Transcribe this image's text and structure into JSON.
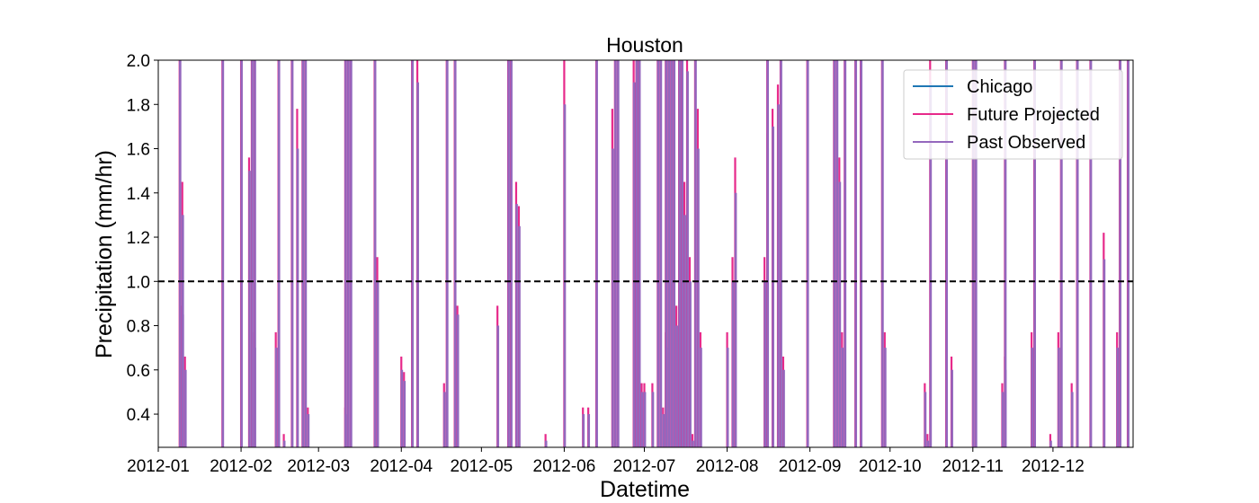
{
  "chart_data": {
    "type": "line",
    "title": "Houston",
    "xlabel": "Datetime",
    "ylabel": "Precipitation (mm/hr)",
    "xlim": [
      "2012-01-01",
      "2012-12-31"
    ],
    "ylim": [
      0.25,
      2.0
    ],
    "x_ticks": [
      "2012-01",
      "2012-02",
      "2012-03",
      "2012-04",
      "2012-05",
      "2012-06",
      "2012-07",
      "2012-08",
      "2012-09",
      "2012-10",
      "2012-11",
      "2012-12"
    ],
    "y_ticks": [
      "0.4",
      "0.6",
      "0.8",
      "1.0",
      "1.2",
      "1.4",
      "1.6",
      "1.8",
      "2.0"
    ],
    "reference_line": {
      "y": 1.0,
      "style": "dashed",
      "color": "#000000"
    },
    "legend_position": "top-right",
    "grid": false,
    "series": [
      {
        "name": "Chicago",
        "color": "#1f77b4",
        "events": []
      },
      {
        "name": "Future Projected",
        "color": "#e7298a",
        "events": [
          [
            "2012-01-09",
            2.0
          ],
          [
            "2012-01-10",
            1.45
          ],
          [
            "2012-01-10",
            0.89
          ],
          [
            "2012-01-11",
            0.66
          ],
          [
            "2012-01-25",
            2.0
          ],
          [
            "2012-02-01",
            2.0
          ],
          [
            "2012-02-04",
            1.56
          ],
          [
            "2012-02-05",
            2.0
          ],
          [
            "2012-02-06",
            2.0
          ],
          [
            "2012-02-06",
            0.77
          ],
          [
            "2012-02-14",
            0.77
          ],
          [
            "2012-02-15",
            2.0
          ],
          [
            "2012-02-17",
            0.31
          ],
          [
            "2012-02-20",
            2.0
          ],
          [
            "2012-02-22",
            1.78
          ],
          [
            "2012-02-24",
            2.0
          ],
          [
            "2012-02-25",
            2.0
          ],
          [
            "2012-02-26",
            0.43
          ],
          [
            "2012-03-11",
            0.43
          ],
          [
            "2012-03-11",
            2.0
          ],
          [
            "2012-03-12",
            2.0
          ],
          [
            "2012-03-13",
            2.0
          ],
          [
            "2012-03-22",
            2.0
          ],
          [
            "2012-03-23",
            1.11
          ],
          [
            "2012-04-01",
            0.66
          ],
          [
            "2012-04-02",
            0.59
          ],
          [
            "2012-04-05",
            2.0
          ],
          [
            "2012-04-07",
            2.0
          ],
          [
            "2012-04-17",
            0.54
          ],
          [
            "2012-04-18",
            2.0
          ],
          [
            "2012-04-21",
            2.0
          ],
          [
            "2012-04-22",
            0.89
          ],
          [
            "2012-05-07",
            0.89
          ],
          [
            "2012-05-11",
            2.0
          ],
          [
            "2012-05-12",
            2.0
          ],
          [
            "2012-05-14",
            1.45
          ],
          [
            "2012-05-15",
            1.34
          ],
          [
            "2012-05-25",
            0.31
          ],
          [
            "2012-06-01",
            2.0
          ],
          [
            "2012-06-08",
            0.43
          ],
          [
            "2012-06-10",
            0.43
          ],
          [
            "2012-06-13",
            2.0
          ],
          [
            "2012-06-19",
            1.78
          ],
          [
            "2012-06-20",
            2.0
          ],
          [
            "2012-06-21",
            2.0
          ],
          [
            "2012-06-27",
            2.0
          ],
          [
            "2012-06-28",
            2.0
          ],
          [
            "2012-06-29",
            2.0
          ],
          [
            "2012-06-30",
            0.54
          ],
          [
            "2012-07-01",
            0.54
          ],
          [
            "2012-07-04",
            0.54
          ],
          [
            "2012-07-06",
            2.0
          ],
          [
            "2012-07-07",
            2.0
          ],
          [
            "2012-07-08",
            0.43
          ],
          [
            "2012-07-09",
            2.0
          ],
          [
            "2012-07-09",
            0.77
          ],
          [
            "2012-07-10",
            2.0
          ],
          [
            "2012-07-11",
            2.0
          ],
          [
            "2012-07-12",
            2.0
          ],
          [
            "2012-07-13",
            0.89
          ],
          [
            "2012-07-14",
            2.0
          ],
          [
            "2012-07-15",
            2.0
          ],
          [
            "2012-07-16",
            1.45
          ],
          [
            "2012-07-17",
            2.0
          ],
          [
            "2012-07-18",
            1.11
          ],
          [
            "2012-07-19",
            0.31
          ],
          [
            "2012-07-20",
            2.0
          ],
          [
            "2012-07-21",
            1.78
          ],
          [
            "2012-07-22",
            0.77
          ],
          [
            "2012-08-01",
            0.77
          ],
          [
            "2012-08-03",
            1.11
          ],
          [
            "2012-08-04",
            1.56
          ],
          [
            "2012-08-15",
            1.11
          ],
          [
            "2012-08-16",
            2.0
          ],
          [
            "2012-08-16",
            1.67
          ],
          [
            "2012-08-18",
            1.78
          ],
          [
            "2012-08-20",
            1.89
          ],
          [
            "2012-08-21",
            2.0
          ],
          [
            "2012-08-22",
            0.66
          ],
          [
            "2012-08-31",
            2.0
          ],
          [
            "2012-09-10",
            2.0
          ],
          [
            "2012-09-11",
            2.0
          ],
          [
            "2012-09-12",
            1.56
          ],
          [
            "2012-09-13",
            0.77
          ],
          [
            "2012-09-14",
            2.0
          ],
          [
            "2012-09-18",
            2.0
          ],
          [
            "2012-09-20",
            2.0
          ],
          [
            "2012-09-28",
            2.0
          ],
          [
            "2012-09-29",
            0.77
          ],
          [
            "2012-10-14",
            0.54
          ],
          [
            "2012-10-15",
            0.31
          ],
          [
            "2012-10-16",
            2.0
          ],
          [
            "2012-10-22",
            2.0
          ],
          [
            "2012-10-24",
            0.66
          ],
          [
            "2012-11-01",
            2.0
          ],
          [
            "2012-11-02",
            2.0
          ],
          [
            "2012-11-12",
            0.54
          ],
          [
            "2012-11-13",
            0.66
          ],
          [
            "2012-11-13",
            2.0
          ],
          [
            "2012-11-23",
            0.77
          ],
          [
            "2012-11-24",
            2.0
          ],
          [
            "2012-11-30",
            0.31
          ],
          [
            "2012-12-03",
            0.77
          ],
          [
            "2012-12-04",
            2.0
          ],
          [
            "2012-12-08",
            0.54
          ],
          [
            "2012-12-10",
            2.0
          ],
          [
            "2012-12-15",
            2.0
          ],
          [
            "2012-12-20",
            1.22
          ],
          [
            "2012-12-25",
            0.77
          ],
          [
            "2012-12-26",
            2.0
          ],
          [
            "2012-12-29",
            2.0
          ]
        ]
      },
      {
        "name": "Past Observed",
        "color": "#9467bd",
        "events": [
          [
            "2012-01-09",
            2.0
          ],
          [
            "2012-01-10",
            1.3
          ],
          [
            "2012-01-10",
            0.85
          ],
          [
            "2012-01-11",
            0.6
          ],
          [
            "2012-01-25",
            2.0
          ],
          [
            "2012-02-01",
            2.0
          ],
          [
            "2012-02-04",
            1.5
          ],
          [
            "2012-02-05",
            2.0
          ],
          [
            "2012-02-06",
            2.0
          ],
          [
            "2012-02-06",
            0.7
          ],
          [
            "2012-02-14",
            0.7
          ],
          [
            "2012-02-15",
            2.0
          ],
          [
            "2012-02-17",
            0.28
          ],
          [
            "2012-02-20",
            2.0
          ],
          [
            "2012-02-22",
            1.6
          ],
          [
            "2012-02-24",
            2.0
          ],
          [
            "2012-02-25",
            2.0
          ],
          [
            "2012-02-26",
            0.4
          ],
          [
            "2012-03-11",
            0.4
          ],
          [
            "2012-03-11",
            2.0
          ],
          [
            "2012-03-12",
            2.0
          ],
          [
            "2012-03-13",
            2.0
          ],
          [
            "2012-03-22",
            2.0
          ],
          [
            "2012-03-23",
            1.0
          ],
          [
            "2012-04-01",
            0.6
          ],
          [
            "2012-04-02",
            0.55
          ],
          [
            "2012-04-05",
            2.0
          ],
          [
            "2012-04-07",
            1.9
          ],
          [
            "2012-04-17",
            0.5
          ],
          [
            "2012-04-18",
            2.0
          ],
          [
            "2012-04-21",
            2.0
          ],
          [
            "2012-04-22",
            0.85
          ],
          [
            "2012-05-07",
            0.8
          ],
          [
            "2012-05-11",
            2.0
          ],
          [
            "2012-05-12",
            2.0
          ],
          [
            "2012-05-14",
            1.35
          ],
          [
            "2012-05-15",
            1.25
          ],
          [
            "2012-05-25",
            0.28
          ],
          [
            "2012-06-01",
            1.8
          ],
          [
            "2012-06-08",
            0.4
          ],
          [
            "2012-06-10",
            0.4
          ],
          [
            "2012-06-13",
            2.0
          ],
          [
            "2012-06-19",
            1.6
          ],
          [
            "2012-06-20",
            2.0
          ],
          [
            "2012-06-21",
            2.0
          ],
          [
            "2012-06-27",
            1.9
          ],
          [
            "2012-06-28",
            2.0
          ],
          [
            "2012-06-29",
            2.0
          ],
          [
            "2012-06-30",
            0.5
          ],
          [
            "2012-07-01",
            0.5
          ],
          [
            "2012-07-04",
            0.5
          ],
          [
            "2012-07-06",
            2.0
          ],
          [
            "2012-07-07",
            2.0
          ],
          [
            "2012-07-08",
            0.4
          ],
          [
            "2012-07-09",
            2.0
          ],
          [
            "2012-07-09",
            0.7
          ],
          [
            "2012-07-10",
            2.0
          ],
          [
            "2012-07-11",
            2.0
          ],
          [
            "2012-07-12",
            2.0
          ],
          [
            "2012-07-13",
            0.8
          ],
          [
            "2012-07-14",
            2.0
          ],
          [
            "2012-07-15",
            2.0
          ],
          [
            "2012-07-16",
            1.3
          ],
          [
            "2012-07-17",
            1.95
          ],
          [
            "2012-07-18",
            1.0
          ],
          [
            "2012-07-19",
            0.28
          ],
          [
            "2012-07-20",
            2.0
          ],
          [
            "2012-07-21",
            1.6
          ],
          [
            "2012-07-22",
            0.7
          ],
          [
            "2012-08-01",
            0.7
          ],
          [
            "2012-08-03",
            1.0
          ],
          [
            "2012-08-04",
            1.4
          ],
          [
            "2012-08-15",
            1.0
          ],
          [
            "2012-08-16",
            2.0
          ],
          [
            "2012-08-16",
            1.6
          ],
          [
            "2012-08-18",
            1.7
          ],
          [
            "2012-08-20",
            1.8
          ],
          [
            "2012-08-21",
            2.0
          ],
          [
            "2012-08-22",
            0.6
          ],
          [
            "2012-08-31",
            2.0
          ],
          [
            "2012-09-10",
            2.0
          ],
          [
            "2012-09-11",
            2.0
          ],
          [
            "2012-09-12",
            1.45
          ],
          [
            "2012-09-13",
            0.7
          ],
          [
            "2012-09-14",
            2.0
          ],
          [
            "2012-09-18",
            2.0
          ],
          [
            "2012-09-20",
            2.0
          ],
          [
            "2012-09-28",
            2.0
          ],
          [
            "2012-09-29",
            0.7
          ],
          [
            "2012-10-14",
            0.5
          ],
          [
            "2012-10-15",
            0.28
          ],
          [
            "2012-10-16",
            1.9
          ],
          [
            "2012-10-22",
            2.0
          ],
          [
            "2012-10-24",
            0.6
          ],
          [
            "2012-11-01",
            2.0
          ],
          [
            "2012-11-02",
            2.0
          ],
          [
            "2012-11-12",
            0.5
          ],
          [
            "2012-11-13",
            0.6
          ],
          [
            "2012-11-13",
            2.0
          ],
          [
            "2012-11-23",
            0.7
          ],
          [
            "2012-11-24",
            2.0
          ],
          [
            "2012-11-30",
            0.28
          ],
          [
            "2012-12-03",
            0.7
          ],
          [
            "2012-12-04",
            2.0
          ],
          [
            "2012-12-08",
            0.5
          ],
          [
            "2012-12-10",
            2.0
          ],
          [
            "2012-12-15",
            2.0
          ],
          [
            "2012-12-20",
            1.1
          ],
          [
            "2012-12-25",
            0.7
          ],
          [
            "2012-12-26",
            2.0
          ],
          [
            "2012-12-29",
            2.0
          ]
        ]
      }
    ]
  }
}
